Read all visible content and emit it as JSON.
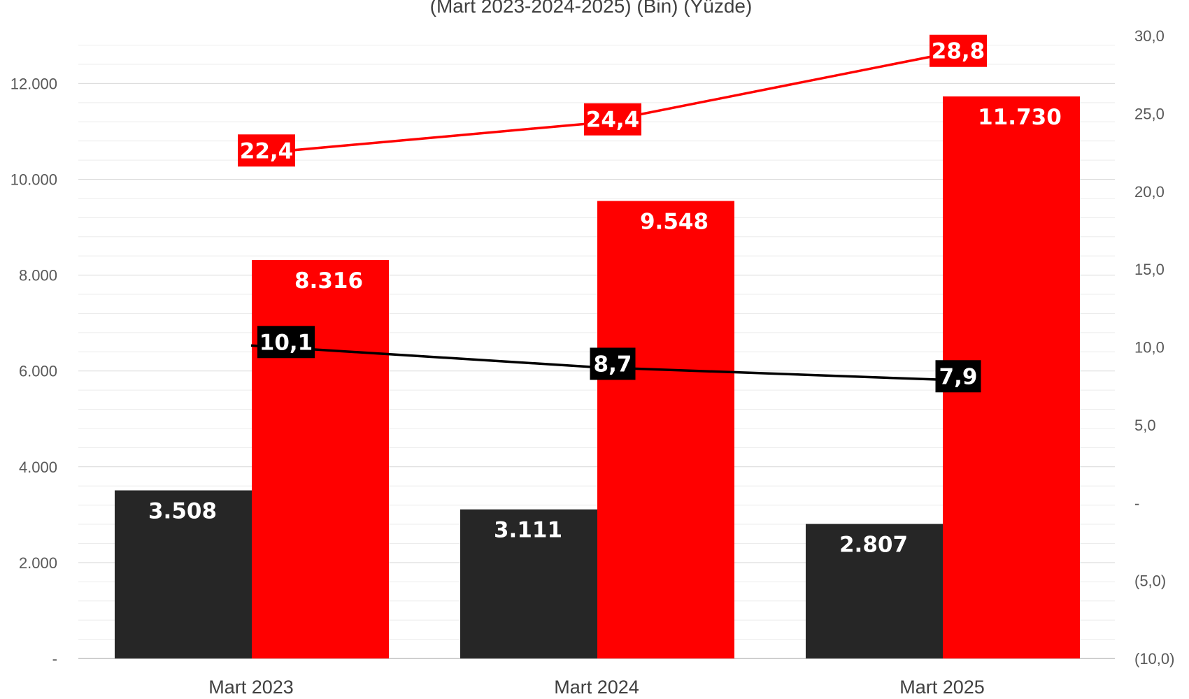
{
  "chart_data": {
    "type": "bar",
    "title": "(Mart 2023-2024-2025) (Bin) (Yüzde)",
    "categories": [
      "Mart 2023",
      "Mart 2024",
      "Mart 2025"
    ],
    "y_left": {
      "lim": [
        0,
        13000
      ],
      "ticks": [
        0,
        2000,
        4000,
        6000,
        8000,
        10000,
        12000
      ],
      "tick_labels": [
        "-",
        "2.000",
        "4.000",
        "6.000",
        "8.000",
        "10.000",
        "12.000"
      ]
    },
    "y_right": {
      "lim": [
        -10,
        30
      ],
      "ticks": [
        -10,
        -5,
        0,
        5,
        10,
        15,
        20,
        25,
        30
      ],
      "tick_labels": [
        "(10,0)",
        "(5,0)",
        "-",
        "5,0",
        "10,0",
        "15,0",
        "20,0",
        "25,0",
        "30,0"
      ]
    },
    "bar_series": [
      {
        "color": "#262626",
        "values": [
          3508,
          3111,
          2807
        ],
        "labels": [
          "3.508",
          "3.111",
          "2.807"
        ]
      },
      {
        "color": "#ff0000",
        "values": [
          8316,
          9548,
          11730
        ],
        "labels": [
          "8.316",
          "9.548",
          "11.730"
        ]
      }
    ],
    "line_series": [
      {
        "color": "#ff0000",
        "axis": "right",
        "values": [
          22.4,
          24.4,
          28.8
        ],
        "labels": [
          "22,4",
          "24,4",
          "28,8"
        ]
      },
      {
        "color": "#000000",
        "axis": "right",
        "values": [
          10.1,
          8.7,
          7.9
        ],
        "labels": [
          "10,1",
          "8,7",
          "7,9"
        ]
      }
    ],
    "grid": true,
    "legend": "none"
  }
}
